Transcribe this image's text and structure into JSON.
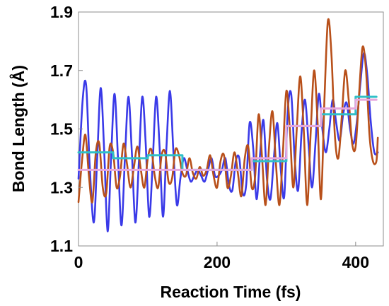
{
  "chart_data": {
    "type": "line",
    "title": "",
    "xlabel": "Reaction Time (fs)",
    "ylabel": "Bond Length (Å)",
    "xlim": [
      0,
      440
    ],
    "ylim": [
      1.1,
      1.9
    ],
    "xticks": [
      0,
      200,
      400
    ],
    "yticks": [
      1.1,
      1.3,
      1.5,
      1.7,
      1.9
    ],
    "xtick_labels": [
      "0",
      "200",
      "400"
    ],
    "ytick_labels": [
      "1.1",
      "1.3",
      "1.5",
      "1.7",
      "1.9"
    ],
    "grid": false,
    "legend": "none",
    "series": [
      {
        "color": "#3a3ae8",
        "style": "oscillating",
        "x": [
          0,
          6,
          11,
          16,
          22,
          27,
          32,
          37,
          42,
          47,
          52,
          57,
          62,
          67,
          72,
          77,
          82,
          87,
          92,
          97,
          102,
          107,
          112,
          117,
          122,
          127,
          132,
          137,
          142,
          147,
          152,
          157,
          162,
          167,
          172,
          177,
          182,
          187,
          192,
          197,
          202,
          207,
          212,
          217,
          222,
          227,
          232,
          237,
          242,
          247,
          252,
          257,
          262,
          267,
          272,
          277,
          282,
          287,
          292,
          297,
          302,
          307,
          312,
          317,
          322,
          327,
          332,
          337,
          342,
          347,
          352,
          357,
          362,
          367,
          372,
          377,
          382,
          387,
          392,
          397,
          402,
          407,
          412,
          417,
          422,
          427,
          432
        ],
        "y": [
          1.33,
          1.6,
          1.65,
          1.38,
          1.18,
          1.4,
          1.64,
          1.43,
          1.15,
          1.4,
          1.62,
          1.4,
          1.17,
          1.4,
          1.61,
          1.42,
          1.18,
          1.38,
          1.61,
          1.45,
          1.2,
          1.38,
          1.61,
          1.44,
          1.2,
          1.44,
          1.63,
          1.42,
          1.24,
          1.33,
          1.4,
          1.36,
          1.32,
          1.34,
          1.36,
          1.34,
          1.32,
          1.36,
          1.4,
          1.34,
          1.34,
          1.36,
          1.4,
          1.31,
          1.29,
          1.39,
          1.4,
          1.28,
          1.31,
          1.52,
          1.44,
          1.26,
          1.41,
          1.53,
          1.33,
          1.26,
          1.4,
          1.52,
          1.36,
          1.27,
          1.56,
          1.62,
          1.4,
          1.29,
          1.49,
          1.6,
          1.45,
          1.3,
          1.45,
          1.62,
          1.5,
          1.42,
          1.5,
          1.6,
          1.52,
          1.46,
          1.55,
          1.59,
          1.5,
          1.45,
          1.53,
          1.66,
          1.76,
          1.68,
          1.52,
          1.42,
          1.42
        ]
      },
      {
        "color": "#b8501a",
        "style": "oscillating",
        "x": [
          0,
          5,
          10,
          15,
          20,
          25,
          30,
          35,
          40,
          45,
          50,
          55,
          60,
          65,
          70,
          75,
          80,
          85,
          90,
          95,
          100,
          105,
          110,
          115,
          120,
          125,
          130,
          135,
          140,
          145,
          150,
          155,
          160,
          165,
          170,
          175,
          180,
          185,
          190,
          195,
          200,
          205,
          210,
          215,
          220,
          225,
          230,
          235,
          240,
          245,
          250,
          255,
          260,
          265,
          270,
          275,
          280,
          285,
          290,
          295,
          300,
          305,
          310,
          315,
          320,
          325,
          330,
          335,
          340,
          345,
          350,
          355,
          360,
          365,
          370,
          375,
          380,
          385,
          390,
          395,
          400,
          405,
          410,
          415,
          420,
          425,
          430,
          432
        ],
        "y": [
          1.25,
          1.39,
          1.48,
          1.34,
          1.25,
          1.42,
          1.45,
          1.3,
          1.28,
          1.44,
          1.42,
          1.3,
          1.34,
          1.45,
          1.38,
          1.3,
          1.37,
          1.44,
          1.36,
          1.3,
          1.4,
          1.43,
          1.34,
          1.3,
          1.41,
          1.42,
          1.32,
          1.33,
          1.43,
          1.41,
          1.35,
          1.34,
          1.4,
          1.35,
          1.33,
          1.37,
          1.34,
          1.36,
          1.41,
          1.34,
          1.3,
          1.39,
          1.41,
          1.3,
          1.34,
          1.42,
          1.35,
          1.27,
          1.4,
          1.44,
          1.3,
          1.34,
          1.55,
          1.4,
          1.24,
          1.44,
          1.56,
          1.38,
          1.24,
          1.42,
          1.63,
          1.5,
          1.3,
          1.5,
          1.68,
          1.5,
          1.24,
          1.48,
          1.7,
          1.53,
          1.26,
          1.6,
          1.87,
          1.76,
          1.48,
          1.4,
          1.54,
          1.7,
          1.6,
          1.45,
          1.44,
          1.62,
          1.78,
          1.7,
          1.48,
          1.39,
          1.39,
          1.47
        ]
      },
      {
        "color": "#30c0c8",
        "style": "step",
        "x": [
          0,
          50,
          50,
          100,
          100,
          150,
          150,
          250,
          250,
          300,
          300,
          350,
          350,
          400,
          400,
          430
        ],
        "y": [
          1.42,
          1.42,
          1.4,
          1.4,
          1.41,
          1.41,
          1.36,
          1.36,
          1.39,
          1.39,
          1.51,
          1.51,
          1.55,
          1.55,
          1.61,
          1.61
        ]
      },
      {
        "color": "#e6a7dd",
        "style": "step",
        "x": [
          0,
          150,
          150,
          250,
          250,
          300,
          300,
          350,
          350,
          400,
          400,
          430
        ],
        "y": [
          1.36,
          1.36,
          1.36,
          1.36,
          1.4,
          1.4,
          1.51,
          1.51,
          1.57,
          1.57,
          1.6,
          1.6
        ]
      }
    ]
  }
}
